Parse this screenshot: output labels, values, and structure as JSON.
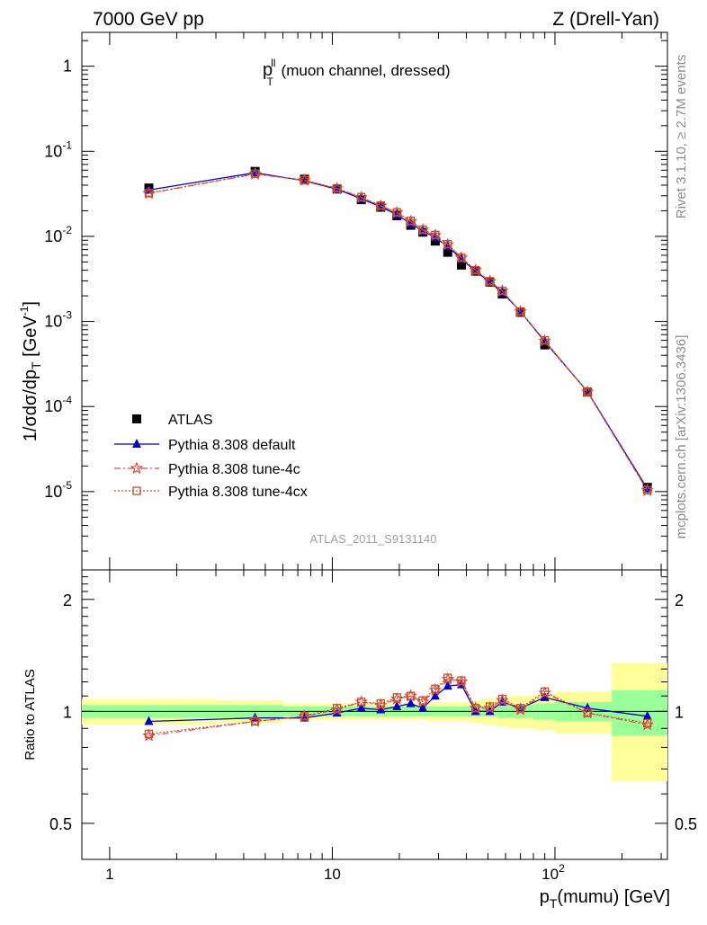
{
  "header": {
    "left": "7000 GeV pp",
    "right": "Z (Drell-Yan)"
  },
  "side_labels": {
    "rivet": "Rivet 3.1.10, ≥ 2.7M events",
    "mcplots": "mcplots.cern.ch [arXiv:1306.3436]"
  },
  "panel_title": {
    "main": "p",
    "sup": "ll",
    "sub": "T",
    "rest": " (muon channel, dressed)"
  },
  "analysis_id": "ATLAS_2011_S9131140",
  "axes": {
    "main_ylabel": "1/σdσ/dp_T [GeV^-1]",
    "ratio_ylabel": "Ratio to ATLAS",
    "xlabel": "p_T(mumu) [GeV]"
  },
  "legend": [
    {
      "label": "ATLAS",
      "marker": "square",
      "color": "#000000"
    },
    {
      "label": "Pythia 8.308 default",
      "marker": "triangle",
      "color": "#0000cc"
    },
    {
      "label": "Pythia 8.308 tune-4c",
      "marker": "star",
      "color": "#e8473d"
    },
    {
      "label": "Pythia 8.308 tune-4cx",
      "marker": "open-square",
      "color": "#c0502a"
    }
  ],
  "chart_data": [
    {
      "type": "line",
      "scale": {
        "x": "log",
        "y": "log"
      },
      "xlim": [
        0.75,
        320
      ],
      "ylim": [
        1.2e-06,
        2.5
      ],
      "x_ticks": [
        "1",
        "10",
        "10^2"
      ],
      "y_ticks": [
        "10^-5",
        "10^-4",
        "10^-3",
        "10^-2",
        "10^-1",
        "1"
      ],
      "x": [
        1.5,
        4.5,
        7.5,
        10.5,
        13.5,
        16.5,
        19.5,
        22.5,
        25.5,
        29,
        33,
        38,
        44,
        51,
        58,
        70,
        90,
        140,
        260
      ],
      "series": [
        {
          "name": "ATLAS",
          "values": [
            0.037,
            0.058,
            0.047,
            0.036,
            0.027,
            0.022,
            0.0175,
            0.0135,
            0.0112,
            0.0088,
            0.0065,
            0.0046,
            0.0039,
            0.0029,
            0.0021,
            0.00128,
            0.00053,
            0.000148,
            1.12e-05
          ]
        },
        {
          "name": "Pythia 8.308 default",
          "values": [
            0.035,
            0.056,
            0.045,
            0.0358,
            0.0277,
            0.0223,
            0.018,
            0.0141,
            0.0115,
            0.0097,
            0.0076,
            0.0054,
            0.0039,
            0.0029,
            0.0022,
            0.00131,
            0.00058,
            0.00015,
            1.08e-05
          ]
        },
        {
          "name": "Pythia 8.308 tune-4c",
          "values": [
            0.032,
            0.054,
            0.0455,
            0.0365,
            0.0286,
            0.0228,
            0.019,
            0.015,
            0.0119,
            0.0103,
            0.008,
            0.0056,
            0.004,
            0.00296,
            0.00228,
            0.0013,
            0.00059,
            0.000148,
            1.03e-05
          ]
        },
        {
          "name": "Pythia 8.308 tune-4cx",
          "values": [
            0.0322,
            0.0545,
            0.0457,
            0.0367,
            0.0289,
            0.023,
            0.0192,
            0.0152,
            0.012,
            0.0104,
            0.0081,
            0.0056,
            0.004,
            0.00297,
            0.00229,
            0.00131,
            0.0006,
            0.000148,
            1.04e-05
          ]
        }
      ]
    },
    {
      "type": "line",
      "scale": {
        "x": "log",
        "y": "log"
      },
      "xlim": [
        0.75,
        320
      ],
      "ylim": [
        0.4,
        2.4
      ],
      "y_ticks": [
        "0.5",
        "1",
        "2"
      ],
      "x": [
        1.5,
        4.5,
        7.5,
        10.5,
        13.5,
        16.5,
        19.5,
        22.5,
        25.5,
        29,
        33,
        38,
        44,
        51,
        58,
        70,
        90,
        140,
        260
      ],
      "series": [
        {
          "name": "Pythia 8.308 default",
          "values": [
            0.94,
            0.96,
            0.96,
            0.99,
            1.02,
            1.01,
            1.03,
            1.05,
            1.02,
            1.1,
            1.17,
            1.18,
            1.0,
            1.0,
            1.06,
            1.02,
            1.09,
            1.02,
            0.97
          ]
        },
        {
          "name": "Pythia 8.308 tune-4c",
          "values": [
            0.86,
            0.94,
            0.97,
            1.01,
            1.06,
            1.04,
            1.08,
            1.1,
            1.06,
            1.14,
            1.22,
            1.2,
            1.02,
            1.02,
            1.07,
            1.01,
            1.12,
            0.99,
            0.92
          ]
        },
        {
          "name": "Pythia 8.308 tune-4cx",
          "values": [
            0.87,
            0.94,
            0.97,
            1.02,
            1.06,
            1.05,
            1.09,
            1.1,
            1.07,
            1.15,
            1.23,
            1.21,
            1.02,
            1.03,
            1.08,
            1.02,
            1.13,
            0.99,
            0.93
          ]
        }
      ],
      "bands": {
        "edges": [
          0.75,
          3,
          6,
          9,
          12,
          15,
          18,
          21,
          24,
          27,
          31,
          35,
          41,
          47,
          55,
          62,
          80,
          100,
          180,
          320
        ],
        "stat_half_width": [
          0.04,
          0.04,
          0.03,
          0.03,
          0.03,
          0.03,
          0.03,
          0.03,
          0.03,
          0.03,
          0.03,
          0.03,
          0.03,
          0.03,
          0.04,
          0.04,
          0.05,
          0.06,
          0.14
        ],
        "total_half_width": [
          0.08,
          0.07,
          0.05,
          0.05,
          0.05,
          0.05,
          0.05,
          0.05,
          0.05,
          0.06,
          0.06,
          0.06,
          0.07,
          0.08,
          0.09,
          0.1,
          0.11,
          0.13,
          0.35
        ]
      }
    }
  ]
}
